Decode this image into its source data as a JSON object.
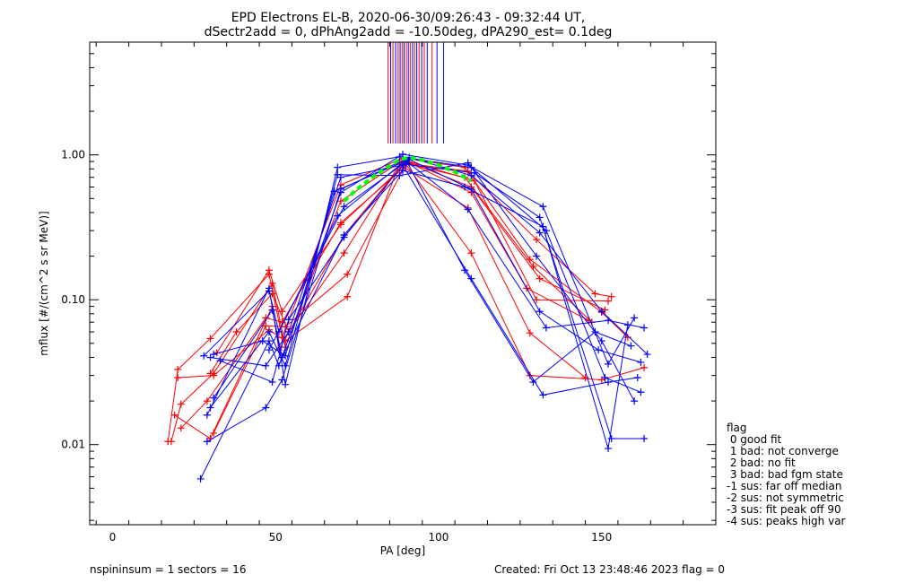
{
  "chart_data": {
    "type": "scatter",
    "title": "EPD Electrons EL-B, 2020-06-30/09:26:43 - 09:32:44 UT,",
    "subtitle": "dSectr2add = 0, dPhAng2add = -10.50deg, dPA290_est=   0.1deg",
    "xlabel": "PA [deg]",
    "ylabel": "mflux [#/(cm^2 s sr MeV)]",
    "xlim": [
      -7,
      185
    ],
    "ylim": [
      0.0028,
      6.0
    ],
    "yscale": "log",
    "x_ticks": [
      0,
      50,
      100,
      150
    ],
    "x_tick_labels": [
      "0",
      "50",
      "100",
      "150"
    ],
    "y_ticks": [
      0.01,
      0.1,
      1.0
    ],
    "y_tick_labels": [
      "0.01",
      "0.10",
      "1.00"
    ],
    "grid": false,
    "colors": {
      "red": "#ff0000",
      "blue": "#0000ff",
      "green": "#00ff00"
    },
    "series": [
      {
        "color": "red",
        "x": [
          17,
          20,
          30,
          48,
          52,
          70,
          89,
          108,
          128,
          150,
          158
        ],
        "y": [
          0.0105,
          0.033,
          0.054,
          0.15,
          0.055,
          0.62,
          0.95,
          0.82,
          0.19,
          0.082,
          0.055
        ]
      },
      {
        "color": "red",
        "x": [
          18,
          21,
          31,
          49,
          53,
          70,
          88,
          109,
          130,
          148,
          153
        ],
        "y": [
          0.0105,
          0.019,
          0.031,
          0.13,
          0.047,
          0.48,
          0.89,
          0.77,
          0.26,
          0.11,
          0.105
        ]
      },
      {
        "color": "red",
        "x": [
          19,
          30,
          49,
          51,
          71,
          90,
          110,
          131,
          151
        ],
        "y": [
          0.016,
          0.011,
          0.09,
          0.045,
          0.28,
          0.91,
          0.6,
          0.14,
          0.085
        ]
      },
      {
        "color": "red",
        "x": [
          20,
          31,
          48,
          53,
          72,
          88,
          109,
          128,
          145
        ],
        "y": [
          0.029,
          0.03,
          0.062,
          0.052,
          0.105,
          0.86,
          0.43,
          0.059,
          0.029
        ]
      },
      {
        "color": "red",
        "x": [
          21,
          29,
          47,
          52,
          70,
          91,
          110,
          127,
          146
        ],
        "y": [
          0.013,
          0.02,
          0.075,
          0.07,
          0.34,
          0.88,
          0.55,
          0.12,
          0.072
        ]
      },
      {
        "color": "red",
        "x": [
          30,
          38,
          49,
          54,
          71,
          89,
          111,
          130,
          152
        ],
        "y": [
          0.031,
          0.06,
          0.11,
          0.06,
          0.21,
          0.93,
          0.66,
          0.1,
          0.098
        ]
      },
      {
        "color": "red",
        "x": [
          32,
          48,
          52,
          70,
          90,
          108,
          129,
          147
        ],
        "y": [
          0.043,
          0.16,
          0.083,
          0.33,
          0.87,
          0.7,
          0.17,
          0.07
        ]
      },
      {
        "color": "red",
        "x": [
          31,
          47,
          53,
          72,
          90,
          110,
          128,
          150,
          163
        ],
        "y": [
          0.012,
          0.066,
          0.065,
          0.15,
          0.86,
          0.21,
          0.03,
          0.028,
          0.034
        ]
      },
      {
        "color": "blue",
        "x": [
          27,
          48,
          51,
          70,
          89,
          109,
          132,
          152,
          160
        ],
        "y": [
          0.0058,
          0.052,
          0.035,
          0.55,
          1.01,
          0.85,
          0.44,
          0.036,
          0.075
        ]
      },
      {
        "color": "blue",
        "x": [
          29,
          48,
          53,
          69,
          88,
          110,
          133,
          151,
          162
        ],
        "y": [
          0.016,
          0.12,
          0.026,
          0.82,
          0.97,
          0.82,
          0.3,
          0.029,
          0.023
        ]
      },
      {
        "color": "blue",
        "x": [
          30,
          47,
          54,
          70,
          90,
          111,
          131,
          153,
          163
        ],
        "y": [
          0.04,
          0.035,
          0.06,
          0.7,
          0.86,
          0.75,
          0.37,
          0.011,
          0.011
        ]
      },
      {
        "color": "blue",
        "x": [
          31,
          49,
          52,
          71,
          89,
          108,
          132,
          152,
          158
        ],
        "y": [
          0.021,
          0.085,
          0.04,
          0.28,
          0.78,
          0.6,
          0.32,
          0.0094,
          0.067
        ]
      },
      {
        "color": "blue",
        "x": [
          30,
          48,
          53,
          69,
          88,
          109,
          130,
          150,
          160
        ],
        "y": [
          0.018,
          0.06,
          0.035,
          0.73,
          0.72,
          0.88,
          0.2,
          0.052,
          0.02
        ]
      },
      {
        "color": "blue",
        "x": [
          29,
          47,
          52,
          70,
          91,
          110,
          131,
          150,
          164
        ],
        "y": [
          0.0105,
          0.018,
          0.028,
          0.58,
          0.96,
          0.72,
          0.29,
          0.083,
          0.042
        ]
      },
      {
        "color": "blue",
        "x": [
          28,
          48,
          51,
          69,
          90,
          108,
          129,
          148,
          159
        ],
        "y": [
          0.041,
          0.115,
          0.06,
          0.38,
          0.92,
          0.16,
          0.027,
          0.06,
          0.048
        ]
      },
      {
        "color": "blue",
        "x": [
          33,
          49,
          54,
          71,
          89,
          110,
          132,
          152,
          161
        ],
        "y": [
          0.038,
          0.027,
          0.073,
          0.27,
          0.85,
          0.14,
          0.022,
          0.027,
          0.029
        ]
      },
      {
        "color": "blue",
        "x": [
          31,
          46,
          53,
          68,
          90,
          109,
          133,
          152,
          163
        ],
        "y": [
          0.042,
          0.052,
          0.041,
          0.56,
          0.91,
          0.42,
          0.064,
          0.072,
          0.064
        ]
      },
      {
        "color": "blue",
        "x": [
          48,
          71,
          91,
          110,
          131,
          149,
          162
        ],
        "y": [
          0.045,
          0.44,
          0.93,
          0.58,
          0.083,
          0.045,
          0.037
        ]
      }
    ],
    "fit": {
      "color": "green",
      "style": "dashed",
      "x": [
        71,
        75,
        80,
        85,
        88,
        91,
        95,
        100,
        105,
        110
      ],
      "y": [
        0.48,
        0.58,
        0.71,
        0.84,
        0.93,
        0.96,
        0.92,
        0.85,
        0.76,
        0.66
      ]
    },
    "top_markers": [
      {
        "x": 84.5,
        "color": "red"
      },
      {
        "x": 85.3,
        "color": "blue"
      },
      {
        "x": 86,
        "color": "red"
      },
      {
        "x": 86.8,
        "color": "blue"
      },
      {
        "x": 87.6,
        "color": "red"
      },
      {
        "x": 88.2,
        "color": "blue"
      },
      {
        "x": 88.8,
        "color": "red"
      },
      {
        "x": 89.4,
        "color": "blue"
      },
      {
        "x": 90.1,
        "color": "red"
      },
      {
        "x": 90.7,
        "color": "blue"
      },
      {
        "x": 91.3,
        "color": "red"
      },
      {
        "x": 92,
        "color": "blue"
      },
      {
        "x": 92.6,
        "color": "red"
      },
      {
        "x": 93.3,
        "color": "blue"
      },
      {
        "x": 94,
        "color": "red"
      },
      {
        "x": 94.8,
        "color": "blue"
      },
      {
        "x": 95.6,
        "color": "red"
      },
      {
        "x": 96.5,
        "color": "blue"
      },
      {
        "x": 98,
        "color": "red"
      },
      {
        "x": 99.5,
        "color": "blue"
      },
      {
        "x": 101.5,
        "color": "blue"
      }
    ],
    "legend": {
      "title": "flag",
      "entries": [
        " 0 good fit",
        " 1 bad: not converge",
        " 2 bad: no fit",
        " 3 bad: bad fgm state",
        "-1 sus: far off median",
        "-2 sus: not symmetric",
        "-3 sus: fit peak off 90",
        "-4 sus: peaks high var"
      ]
    }
  },
  "footer": {
    "left": "nspininsum =  1  sectors = 16",
    "right": "Created: Fri Oct 13 23:48:46 2023   flag = 0"
  }
}
